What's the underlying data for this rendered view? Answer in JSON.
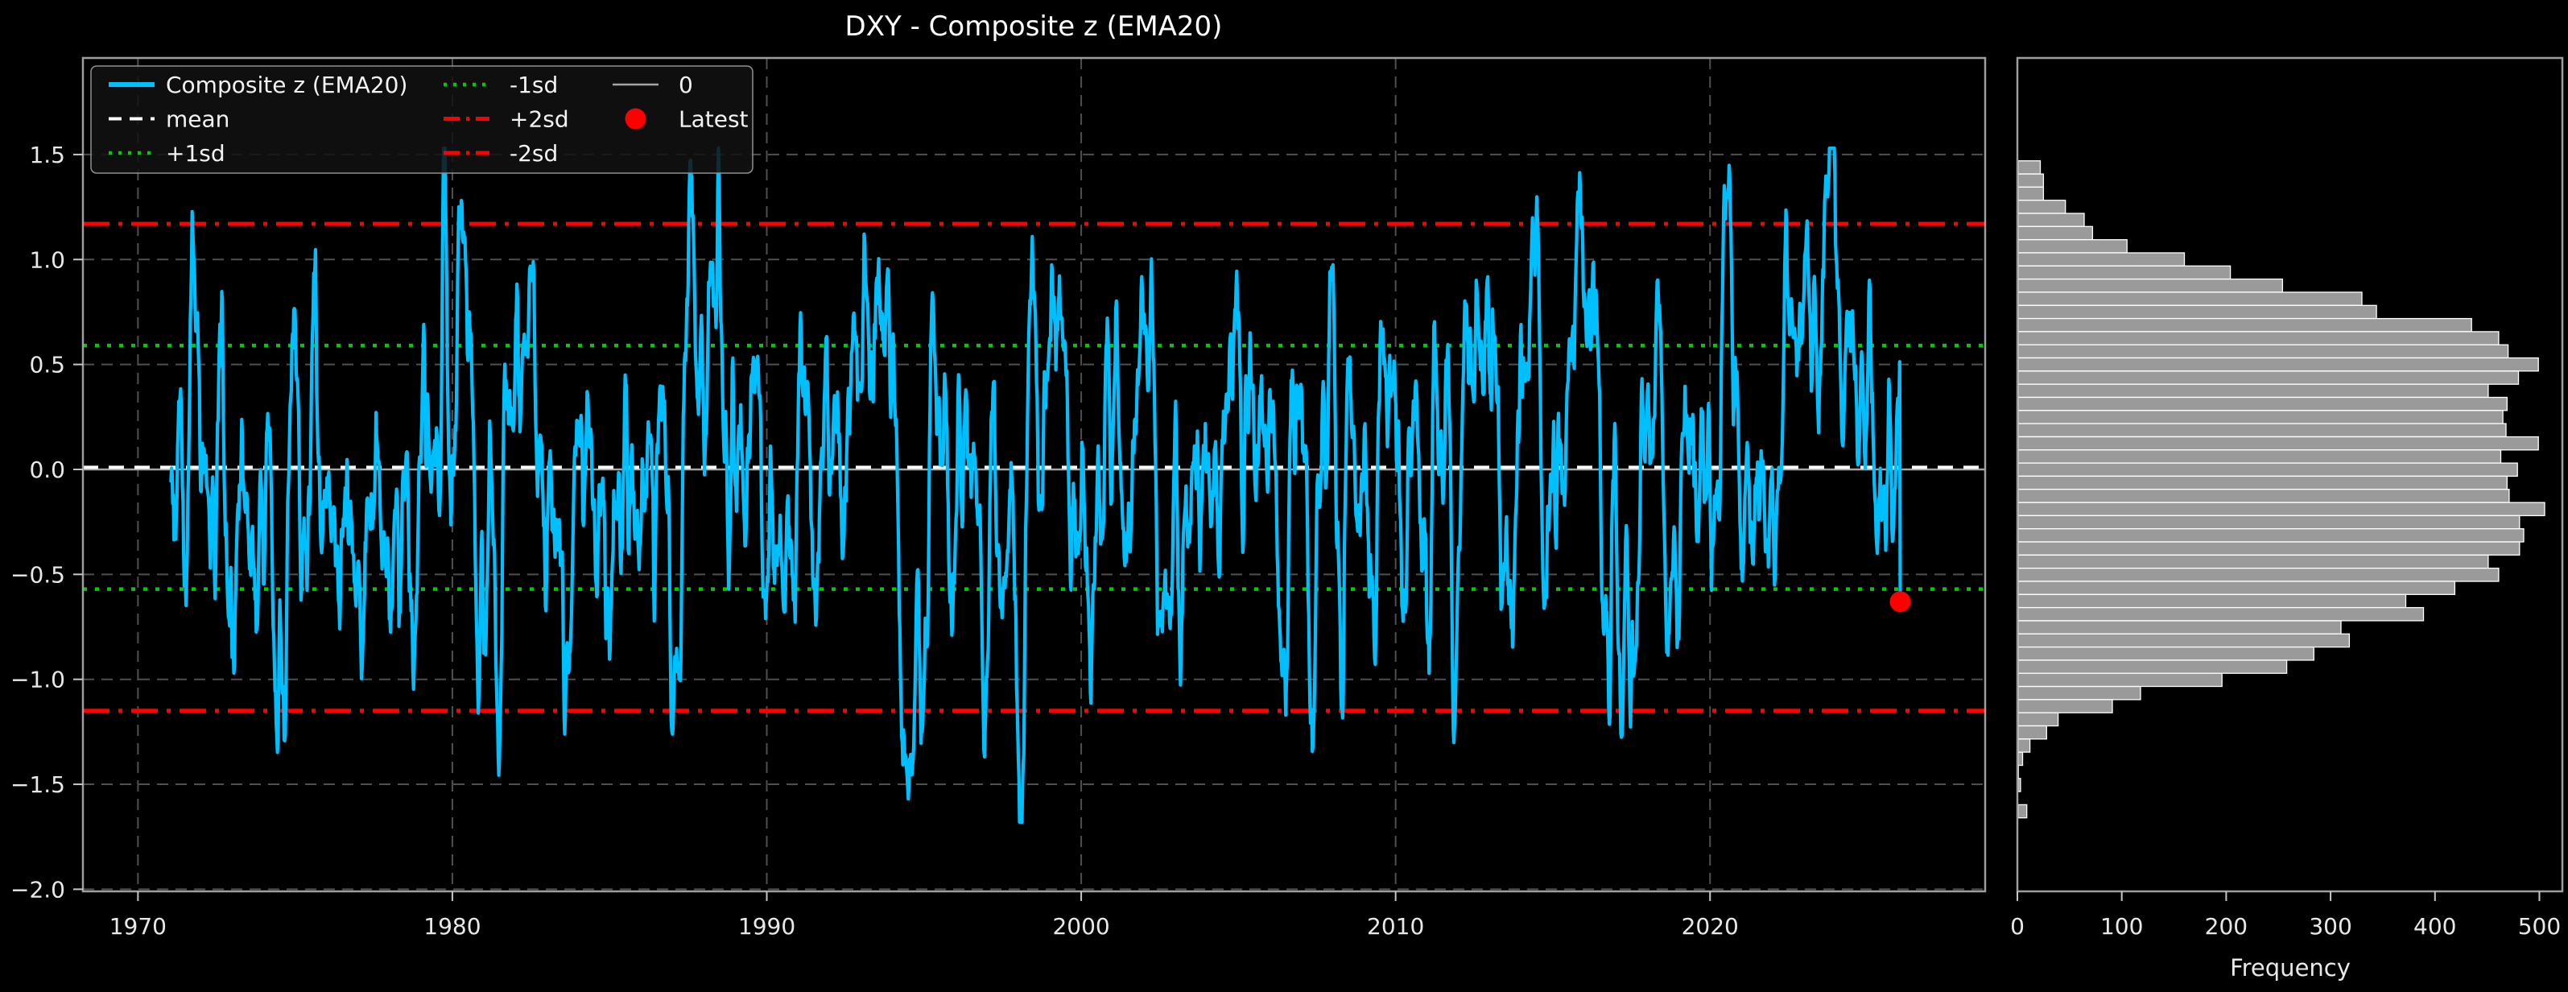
{
  "figure": {
    "title": "DXY - Composite z (EMA20)",
    "background": "#000000"
  },
  "main_axis": {
    "xlim": [
      1968.25,
      2028.75
    ],
    "ylim": [
      -2.01,
      1.96
    ],
    "xticks": [
      {
        "v": 1970,
        "label": "1970"
      },
      {
        "v": 1980,
        "label": "1980"
      },
      {
        "v": 1990,
        "label": "1990"
      },
      {
        "v": 2000,
        "label": "2000"
      },
      {
        "v": 2010,
        "label": "2010"
      },
      {
        "v": 2020,
        "label": "2020"
      }
    ],
    "yticks": [
      {
        "v": 1.5,
        "label": "1.5"
      },
      {
        "v": 1.0,
        "label": "1.0"
      },
      {
        "v": 0.5,
        "label": "0.5"
      },
      {
        "v": 0.0,
        "label": "0.0"
      },
      {
        "v": -0.5,
        "label": "−0.5"
      },
      {
        "v": -1.0,
        "label": "−1.0"
      },
      {
        "v": -1.5,
        "label": "−1.5"
      },
      {
        "v": -2.0,
        "label": "−2.0"
      }
    ],
    "grid": "dashed-gray"
  },
  "legend": {
    "items": [
      {
        "label": "Composite z (EMA20)",
        "swatch": "line",
        "style": "solid-thick",
        "color": "#00bfff"
      },
      {
        "label": "mean",
        "swatch": "line",
        "style": "dashed",
        "color": "#ffffff"
      },
      {
        "label": "+1sd",
        "swatch": "line",
        "style": "dotted",
        "color": "#00cc00"
      },
      {
        "label": "-1sd",
        "swatch": "line",
        "style": "dotted",
        "color": "#00cc00"
      },
      {
        "label": "+2sd",
        "swatch": "line",
        "style": "dashdot",
        "color": "#ff0000"
      },
      {
        "label": "-2sd",
        "swatch": "line",
        "style": "dashdot",
        "color": "#ff0000"
      },
      {
        "label": "0",
        "swatch": "line",
        "style": "solid-thin",
        "color": "#a6a6a6"
      },
      {
        "label": "Latest",
        "swatch": "dot",
        "style": "marker",
        "color": "#ff0000"
      }
    ]
  },
  "chart_data": [
    {
      "type": "line",
      "name": "Composite z (EMA20)",
      "color": "#00bfff",
      "x_start": 1971.05,
      "x_end": 2026.05,
      "xlim": [
        1968.25,
        2028.75
      ],
      "ylim": [
        -2.01,
        1.96
      ],
      "stat_lines": [
        {
          "name": "zero",
          "value": 0.0,
          "color": "#a6a6a6",
          "style": "solid-thin"
        },
        {
          "name": "mean",
          "value": 0.01,
          "color": "#ffffff",
          "style": "dashed"
        },
        {
          "name": "+1sd",
          "value": 0.59,
          "color": "#00cc00",
          "style": "dotted"
        },
        {
          "name": "-1sd",
          "value": -0.57,
          "color": "#00cc00",
          "style": "dotted"
        },
        {
          "name": "+2sd",
          "value": 1.17,
          "color": "#ff0000",
          "style": "dashdot"
        },
        {
          "name": "-2sd",
          "value": -1.15,
          "color": "#ff0000",
          "style": "dashdot"
        }
      ],
      "latest_point": {
        "x": 2026.05,
        "value": -0.63,
        "color": "#ff0000"
      },
      "approx_generator": {
        "note": "dense multi-decade z-score oscillation (~2-3 swings/yr, mostly within ±1.2, min ≈ -1.67, max ≈ 1.5); reproduced with seeded AR(1)+EMA noise",
        "seed": 20,
        "n_points": 2860,
        "ar": 0.9,
        "ema_alpha": 0.38,
        "mean": 0.01,
        "sd": 0.58,
        "clip_min": -1.68,
        "clip_max": 1.53
      }
    },
    {
      "type": "histogram",
      "orientation": "horizontal",
      "xlabel": "Frequency",
      "bar_color": "#9a9a9a",
      "bar_edge_color": "#ffffff",
      "xlim": [
        0,
        522
      ],
      "xticks": [
        {
          "v": 0,
          "label": "0"
        },
        {
          "v": 100,
          "label": "100"
        },
        {
          "v": 200,
          "label": "200"
        },
        {
          "v": 300,
          "label": "300"
        },
        {
          "v": 400,
          "label": "400"
        },
        {
          "v": 500,
          "label": "500"
        }
      ],
      "bins": {
        "z_top_edge": 1.47,
        "z_bin_height": 0.0626,
        "frequencies_top_to_bottom": [
          22,
          25,
          25,
          46,
          64,
          72,
          105,
          160,
          204,
          254,
          330,
          344,
          435,
          461,
          470,
          499,
          480,
          451,
          469,
          465,
          468,
          499,
          463,
          479,
          469,
          471,
          505,
          481,
          485,
          481,
          451,
          461,
          419,
          372,
          389,
          310,
          318,
          284,
          258,
          196,
          118,
          91,
          39,
          28,
          12,
          5,
          1,
          3,
          0,
          9
        ]
      }
    }
  ]
}
